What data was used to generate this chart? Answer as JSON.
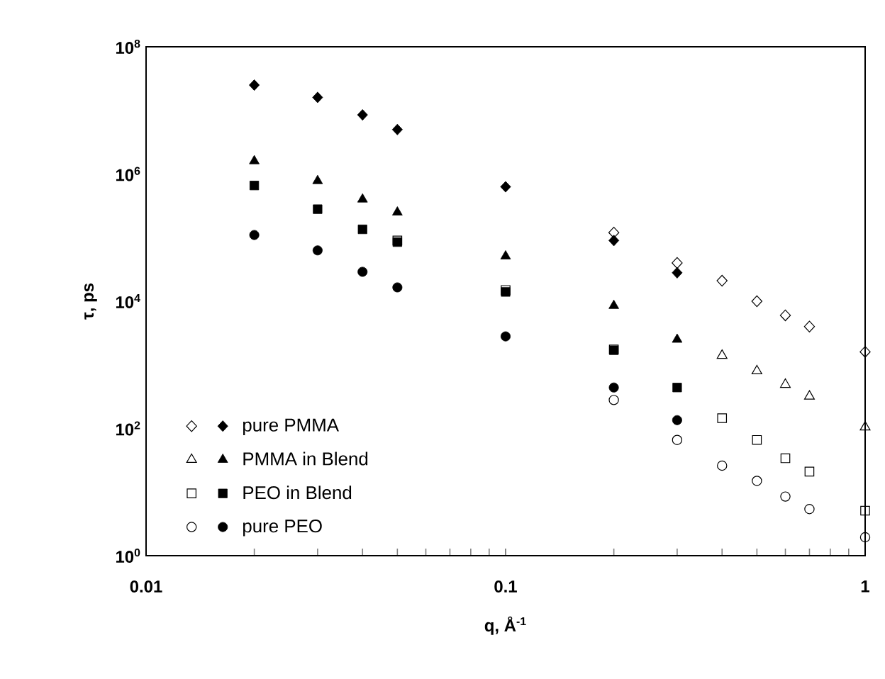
{
  "chart_data": {
    "type": "scatter",
    "xlabel": "q, Å$^{-1}$",
    "ylabel": "τ, ps",
    "log": "xy",
    "xlim": [
      0.01,
      1
    ],
    "ylim": [
      1,
      100000000
    ],
    "xticks": [
      0.01,
      0.1,
      1
    ],
    "yticks": [
      {
        "value": 1,
        "label": "10$^{0}$"
      },
      {
        "value": 100,
        "label": "10$^{2}$"
      },
      {
        "value": 10000,
        "label": "10$^{4}$"
      },
      {
        "value": 1000000,
        "label": "10$^{6}$"
      },
      {
        "value": 100000000,
        "label": "10$^{8}$"
      }
    ],
    "grid": false,
    "legend": "bottom left",
    "series": [
      {
        "name": "pure PMMA",
        "color": "#000000",
        "marker": "diamond",
        "x": [
          0.02,
          0.03,
          0.04,
          0.05,
          0.1,
          0.2,
          0.3
        ],
        "values": [
          25000000,
          16000000,
          8500000,
          5000000,
          630000,
          90000,
          28000
        ]
      },
      {
        "marker": "diamond",
        "x": [
          0.2,
          0.3,
          0.4,
          0.5,
          0.6,
          0.7,
          1.0
        ],
        "values": [
          120000,
          40000,
          21000,
          10000,
          6000,
          4000,
          1600
        ]
      },
      {
        "name": "PMMA in Blend",
        "color": "#000000",
        "marker": "triangle",
        "x": [
          0.02,
          0.03,
          0.04,
          0.05,
          0.1,
          0.2,
          0.3
        ],
        "values": [
          1600000,
          780000,
          400000,
          250000,
          51000,
          8500,
          2500
        ]
      },
      {
        "marker": "triangle",
        "x": [
          0.4,
          0.5,
          0.6,
          0.7,
          1.0
        ],
        "values": [
          1400,
          800,
          490,
          320,
          105
        ]
      },
      {
        "name": "PEO in Blend",
        "color": "#000000",
        "marker": "square",
        "x": [
          0.02,
          0.03,
          0.04,
          0.05,
          0.1,
          0.2,
          0.3
        ],
        "values": [
          660000,
          280000,
          135000,
          85000,
          14000,
          1700,
          440
        ]
      },
      {
        "marker": "square",
        "x": [
          0.05,
          0.1,
          0.2,
          0.4,
          0.5,
          0.6,
          0.7,
          1.0
        ],
        "values": [
          90000,
          15000,
          1750,
          145,
          66,
          34,
          21,
          5.1
        ]
      },
      {
        "name": "pure PEO",
        "color": "#000000",
        "marker": "circle",
        "x": [
          0.02,
          0.03,
          0.04,
          0.05,
          0.1,
          0.2,
          0.3
        ],
        "values": [
          110000,
          63000,
          29000,
          16500,
          2800,
          440,
          135
        ]
      },
      {
        "marker": "circle",
        "x": [
          0.2,
          0.3,
          0.4,
          0.5,
          0.6,
          0.7,
          1.0
        ],
        "values": [
          280,
          66,
          26,
          15,
          8.5,
          5.4,
          1.95
        ]
      }
    ]
  }
}
